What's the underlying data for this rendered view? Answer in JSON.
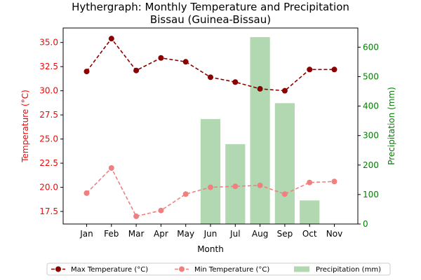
{
  "chart_data": {
    "type": "bar+line",
    "title": "Hythergraph: Monthly Temperature and Precipitation",
    "subtitle": "Bissau (Guinea-Bissau)",
    "xlabel": "Month",
    "ylabel_left": "Temperature (°C)",
    "ylabel_right": "Precipitation (mm)",
    "categories": [
      "Jan",
      "Feb",
      "Mar",
      "Apr",
      "May",
      "Jun",
      "Jul",
      "Aug",
      "Sep",
      "Oct",
      "Nov"
    ],
    "ylim_left": [
      16.2,
      36.5
    ],
    "ylim_right": [
      0,
      665
    ],
    "yticks_left": [
      "17.5",
      "20.0",
      "22.5",
      "25.0",
      "27.5",
      "30.0",
      "32.5",
      "35.0"
    ],
    "yticks_right": [
      "0",
      "100",
      "200",
      "300",
      "400",
      "500",
      "600"
    ],
    "series": [
      {
        "name": "Max Temperature (°C)",
        "type": "line",
        "axis": "left",
        "color": "#8b0000",
        "dashed": true,
        "values": [
          32.0,
          35.4,
          32.1,
          33.4,
          33.0,
          31.4,
          30.9,
          30.2,
          30.0,
          32.2,
          32.2
        ]
      },
      {
        "name": "Min Temperature (°C)",
        "type": "line",
        "axis": "left",
        "color": "#f08080",
        "dashed": true,
        "values": [
          19.4,
          22.0,
          17.0,
          17.6,
          19.3,
          20.0,
          20.1,
          20.2,
          19.3,
          20.5,
          20.6
        ]
      },
      {
        "name": "Precipitation (mm)",
        "type": "bar",
        "axis": "right",
        "color": "#b2d8b2",
        "values": [
          0,
          0,
          0,
          0,
          0,
          356,
          271,
          634,
          410,
          80,
          0
        ]
      }
    ],
    "legend": {
      "placement": "bottom-center"
    },
    "colors": {
      "left_axis": "#ff0000",
      "right_axis": "#008000"
    }
  }
}
